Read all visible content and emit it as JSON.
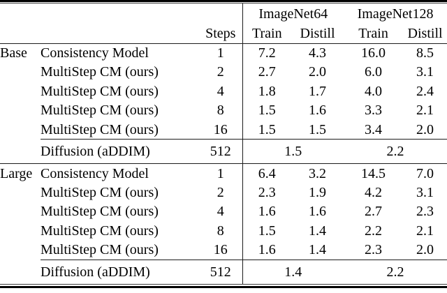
{
  "colors": {
    "background": "#ffffff",
    "text": "#000000",
    "rule": "#1c1c1c"
  },
  "table": {
    "header": {
      "steps_label": "Steps",
      "groups": [
        {
          "label": "ImageNet64"
        },
        {
          "label": "ImageNet128"
        }
      ],
      "subcols": [
        "Train",
        "Distill",
        "Train",
        "Distill"
      ]
    },
    "sections": [
      {
        "group_label": "Base",
        "rows": [
          {
            "method": "Consistency Model",
            "steps": "1",
            "values": [
              "7.2",
              "4.3",
              "16.0",
              "8.5"
            ]
          },
          {
            "method": "MultiStep CM (ours)",
            "steps": "2",
            "values": [
              "2.7",
              "2.0",
              "6.0",
              "3.1"
            ]
          },
          {
            "method": "MultiStep CM (ours)",
            "steps": "4",
            "values": [
              "1.8",
              "1.7",
              "4.0",
              "2.4"
            ]
          },
          {
            "method": "MultiStep CM (ours)",
            "steps": "8",
            "values": [
              "1.5",
              "1.6",
              "3.3",
              "2.1"
            ]
          },
          {
            "method": "MultiStep CM (ours)",
            "steps": "16",
            "values": [
              "1.5",
              "1.5",
              "3.4",
              "2.0"
            ]
          }
        ],
        "diffusion_row": {
          "method": "Diffusion (aDDIM)",
          "steps": "512",
          "imagenet64_value": "1.5",
          "imagenet128_value": "2.2"
        }
      },
      {
        "group_label": "Large",
        "rows": [
          {
            "method": "Consistency Model",
            "steps": "1",
            "values": [
              "6.4",
              "3.2",
              "14.5",
              "7.0"
            ]
          },
          {
            "method": "MultiStep CM (ours)",
            "steps": "2",
            "values": [
              "2.3",
              "1.9",
              "4.2",
              "3.1"
            ]
          },
          {
            "method": "MultiStep CM (ours)",
            "steps": "4",
            "values": [
              "1.6",
              "1.6",
              "2.7",
              "2.3"
            ]
          },
          {
            "method": "MultiStep CM (ours)",
            "steps": "8",
            "values": [
              "1.5",
              "1.4",
              "2.2",
              "2.1"
            ]
          },
          {
            "method": "MultiStep CM (ours)",
            "steps": "16",
            "values": [
              "1.6",
              "1.4",
              "2.3",
              "2.0"
            ]
          }
        ],
        "diffusion_row": {
          "method": "Diffusion (aDDIM)",
          "steps": "512",
          "imagenet64_value": "1.4",
          "imagenet128_value": "2.2"
        }
      }
    ]
  }
}
